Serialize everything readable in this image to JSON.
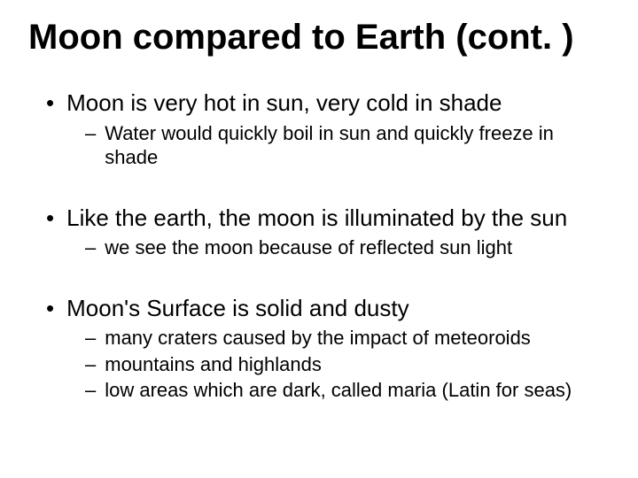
{
  "slide": {
    "title": "Moon compared to Earth (cont. )",
    "title_font": "Comic Sans MS",
    "title_fontsize": 40,
    "title_color": "#000000",
    "body_font": "Arial",
    "body_color": "#000000",
    "background_color": "#ffffff",
    "level1_fontsize": 26,
    "level2_fontsize": 22,
    "level1_marker": "•",
    "level2_marker": "–",
    "groups": [
      {
        "main": "Moon is very hot in sun, very cold in shade",
        "subs": [
          "Water would quickly boil in sun and quickly freeze in shade"
        ]
      },
      {
        "main": "Like the earth, the moon is illuminated by the sun",
        "subs": [
          "we see the moon because of reflected sun light"
        ]
      },
      {
        "main": "Moon's Surface is solid and dusty",
        "subs": [
          "many craters caused by the impact of meteoroids",
          "mountains and highlands",
          "low areas which are dark, called maria (Latin for seas)"
        ]
      }
    ]
  }
}
